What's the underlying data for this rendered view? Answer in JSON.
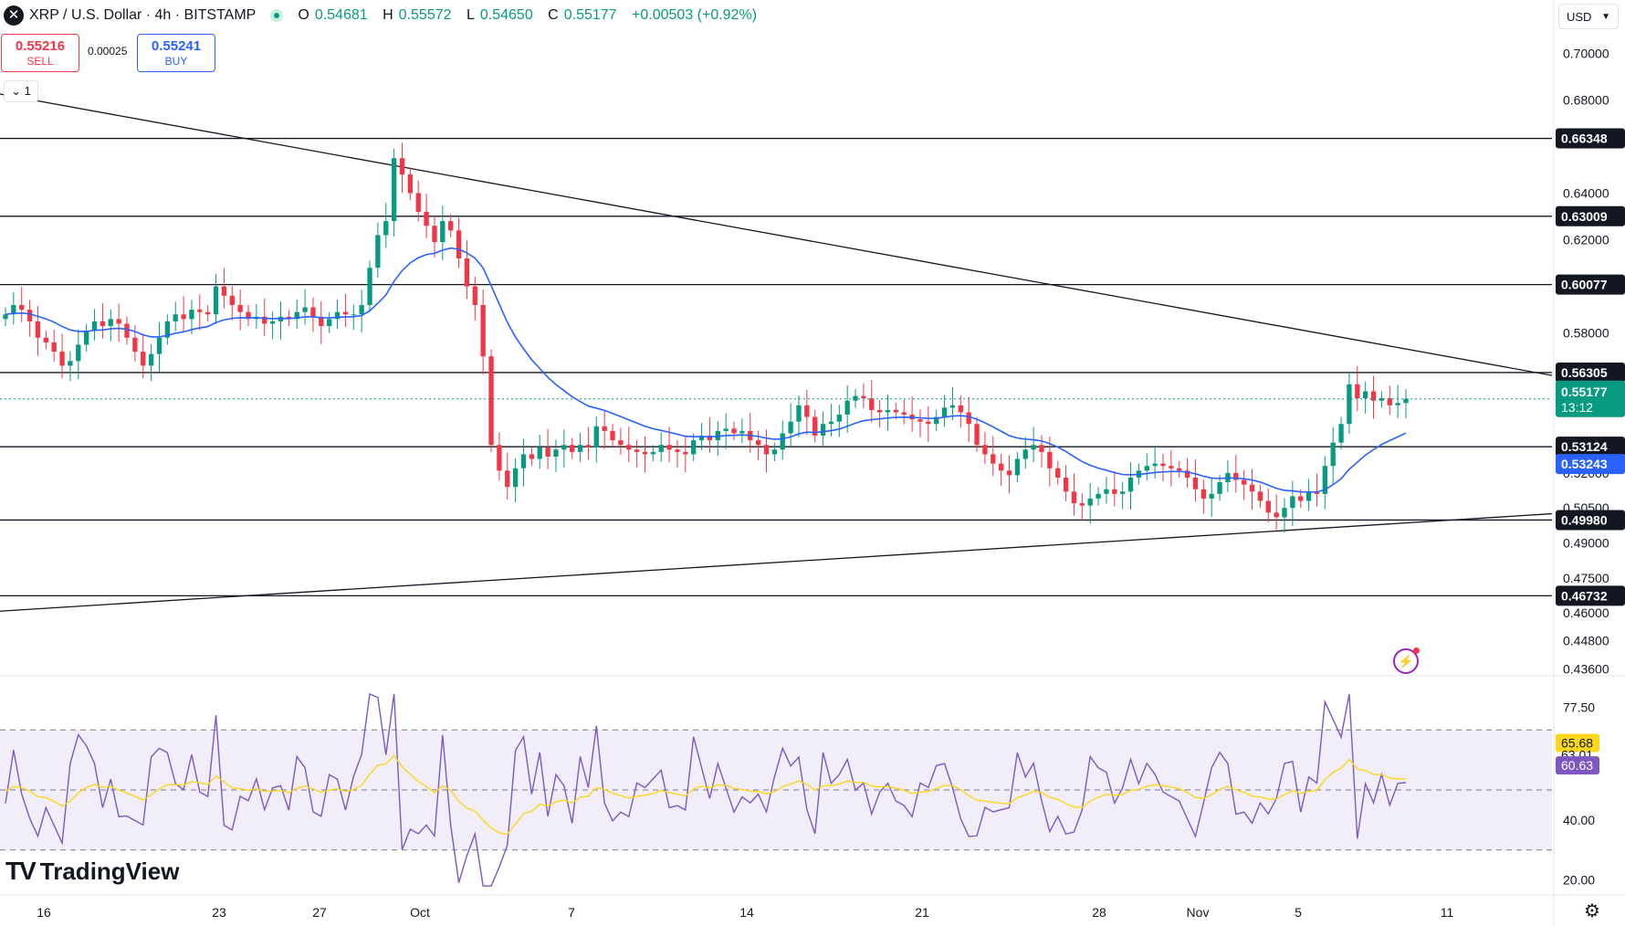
{
  "header": {
    "symbol": "XRP / U.S. Dollar · 4h · BITSTAMP",
    "ohlc": {
      "o_label": "O",
      "o": "0.54681",
      "h_label": "H",
      "h": "0.55572",
      "l_label": "L",
      "l": "0.54650",
      "c_label": "C",
      "c": "0.55177",
      "change": "+0.00503 (+0.92%)"
    },
    "logo_letter": "✕"
  },
  "trade": {
    "sell_price": "0.55216",
    "sell_label": "SELL",
    "spread": "0.00025",
    "buy_price": "0.55241",
    "buy_label": "BUY",
    "interval": "1"
  },
  "currency": "USD",
  "branding": "TradingView",
  "colors": {
    "up": "#089981",
    "down": "#f23645",
    "ma": "#2962ff",
    "rsi": "#7e57c2",
    "rsi_ma": "#f9d71c",
    "line": "#131722"
  },
  "chart_data": {
    "type": "candlestick",
    "price_axis": {
      "ticks": [
        "0.70000",
        "0.68000",
        "0.64000",
        "0.62000",
        "0.58000",
        "0.52000",
        "0.50500",
        "0.49000",
        "0.47500",
        "0.46000",
        "0.44800",
        "0.43600"
      ],
      "range": [
        0.433,
        0.715
      ]
    },
    "x_axis": {
      "ticks": [
        "16",
        "23",
        "27",
        "Oct",
        "7",
        "14",
        "21",
        "28",
        "Nov",
        "5",
        "11"
      ]
    },
    "horizontal_levels": [
      {
        "value": 0.66348,
        "label": "0.66348"
      },
      {
        "value": 0.63009,
        "label": "0.63009"
      },
      {
        "value": 0.60077,
        "label": "0.60077"
      },
      {
        "value": 0.56305,
        "label": "0.56305"
      },
      {
        "value": 0.53124,
        "label": "0.53124"
      },
      {
        "value": 0.4998,
        "label": "0.49980"
      },
      {
        "value": 0.46732,
        "label": "0.46732"
      }
    ],
    "trendlines": [
      {
        "from": [
          0,
          0.6825
        ],
        "to": [
          1,
          0.5618
        ]
      },
      {
        "from": [
          0,
          0.4607
        ],
        "to": [
          1,
          0.5025
        ]
      }
    ],
    "last_price": {
      "value": 0.55177,
      "label": "0.55177",
      "countdown": "13:12"
    },
    "ma_last": {
      "value": 0.53243,
      "label": "0.53243"
    },
    "candles_close": [
      0.588,
      0.592,
      0.59,
      0.585,
      0.578,
      0.576,
      0.572,
      0.566,
      0.568,
      0.575,
      0.581,
      0.585,
      0.583,
      0.586,
      0.584,
      0.578,
      0.572,
      0.566,
      0.571,
      0.578,
      0.585,
      0.588,
      0.586,
      0.59,
      0.589,
      0.588,
      0.6,
      0.596,
      0.592,
      0.589,
      0.586,
      0.587,
      0.584,
      0.585,
      0.587,
      0.586,
      0.589,
      0.591,
      0.587,
      0.583,
      0.586,
      0.589,
      0.588,
      0.588,
      0.592,
      0.608,
      0.622,
      0.628,
      0.655,
      0.648,
      0.64,
      0.632,
      0.626,
      0.619,
      0.628,
      0.624,
      0.612,
      0.6,
      0.592,
      0.57,
      0.532,
      0.521,
      0.514,
      0.522,
      0.528,
      0.526,
      0.531,
      0.527,
      0.53,
      0.532,
      0.529,
      0.532,
      0.531,
      0.54,
      0.538,
      0.534,
      0.532,
      0.53,
      0.529,
      0.528,
      0.529,
      0.532,
      0.53,
      0.529,
      0.528,
      0.534,
      0.536,
      0.534,
      0.538,
      0.539,
      0.537,
      0.538,
      0.534,
      0.532,
      0.528,
      0.53,
      0.537,
      0.542,
      0.549,
      0.544,
      0.536,
      0.541,
      0.542,
      0.545,
      0.551,
      0.553,
      0.552,
      0.547,
      0.546,
      0.547,
      0.546,
      0.545,
      0.543,
      0.542,
      0.541,
      0.544,
      0.548,
      0.549,
      0.546,
      0.541,
      0.532,
      0.528,
      0.524,
      0.521,
      0.519,
      0.526,
      0.53,
      0.532,
      0.529,
      0.522,
      0.518,
      0.512,
      0.507,
      0.506,
      0.509,
      0.511,
      0.513,
      0.511,
      0.512,
      0.518,
      0.521,
      0.523,
      0.524,
      0.523,
      0.522,
      0.521,
      0.518,
      0.513,
      0.509,
      0.511,
      0.516,
      0.52,
      0.517,
      0.515,
      0.512,
      0.508,
      0.503,
      0.501,
      0.505,
      0.51,
      0.508,
      0.512,
      0.511,
      0.523,
      0.533,
      0.541,
      0.558,
      0.552,
      0.555,
      0.551,
      0.552,
      0.549,
      0.55,
      0.5518
    ],
    "rsi_axis": {
      "ticks": [
        "77.50",
        "40.00",
        "20.00"
      ],
      "range": [
        15,
        85
      ],
      "bands": [
        70,
        50,
        30
      ]
    },
    "rsi_labels": {
      "ma": "65.68",
      "mid": "63.01",
      "rsi": "60.63"
    }
  }
}
